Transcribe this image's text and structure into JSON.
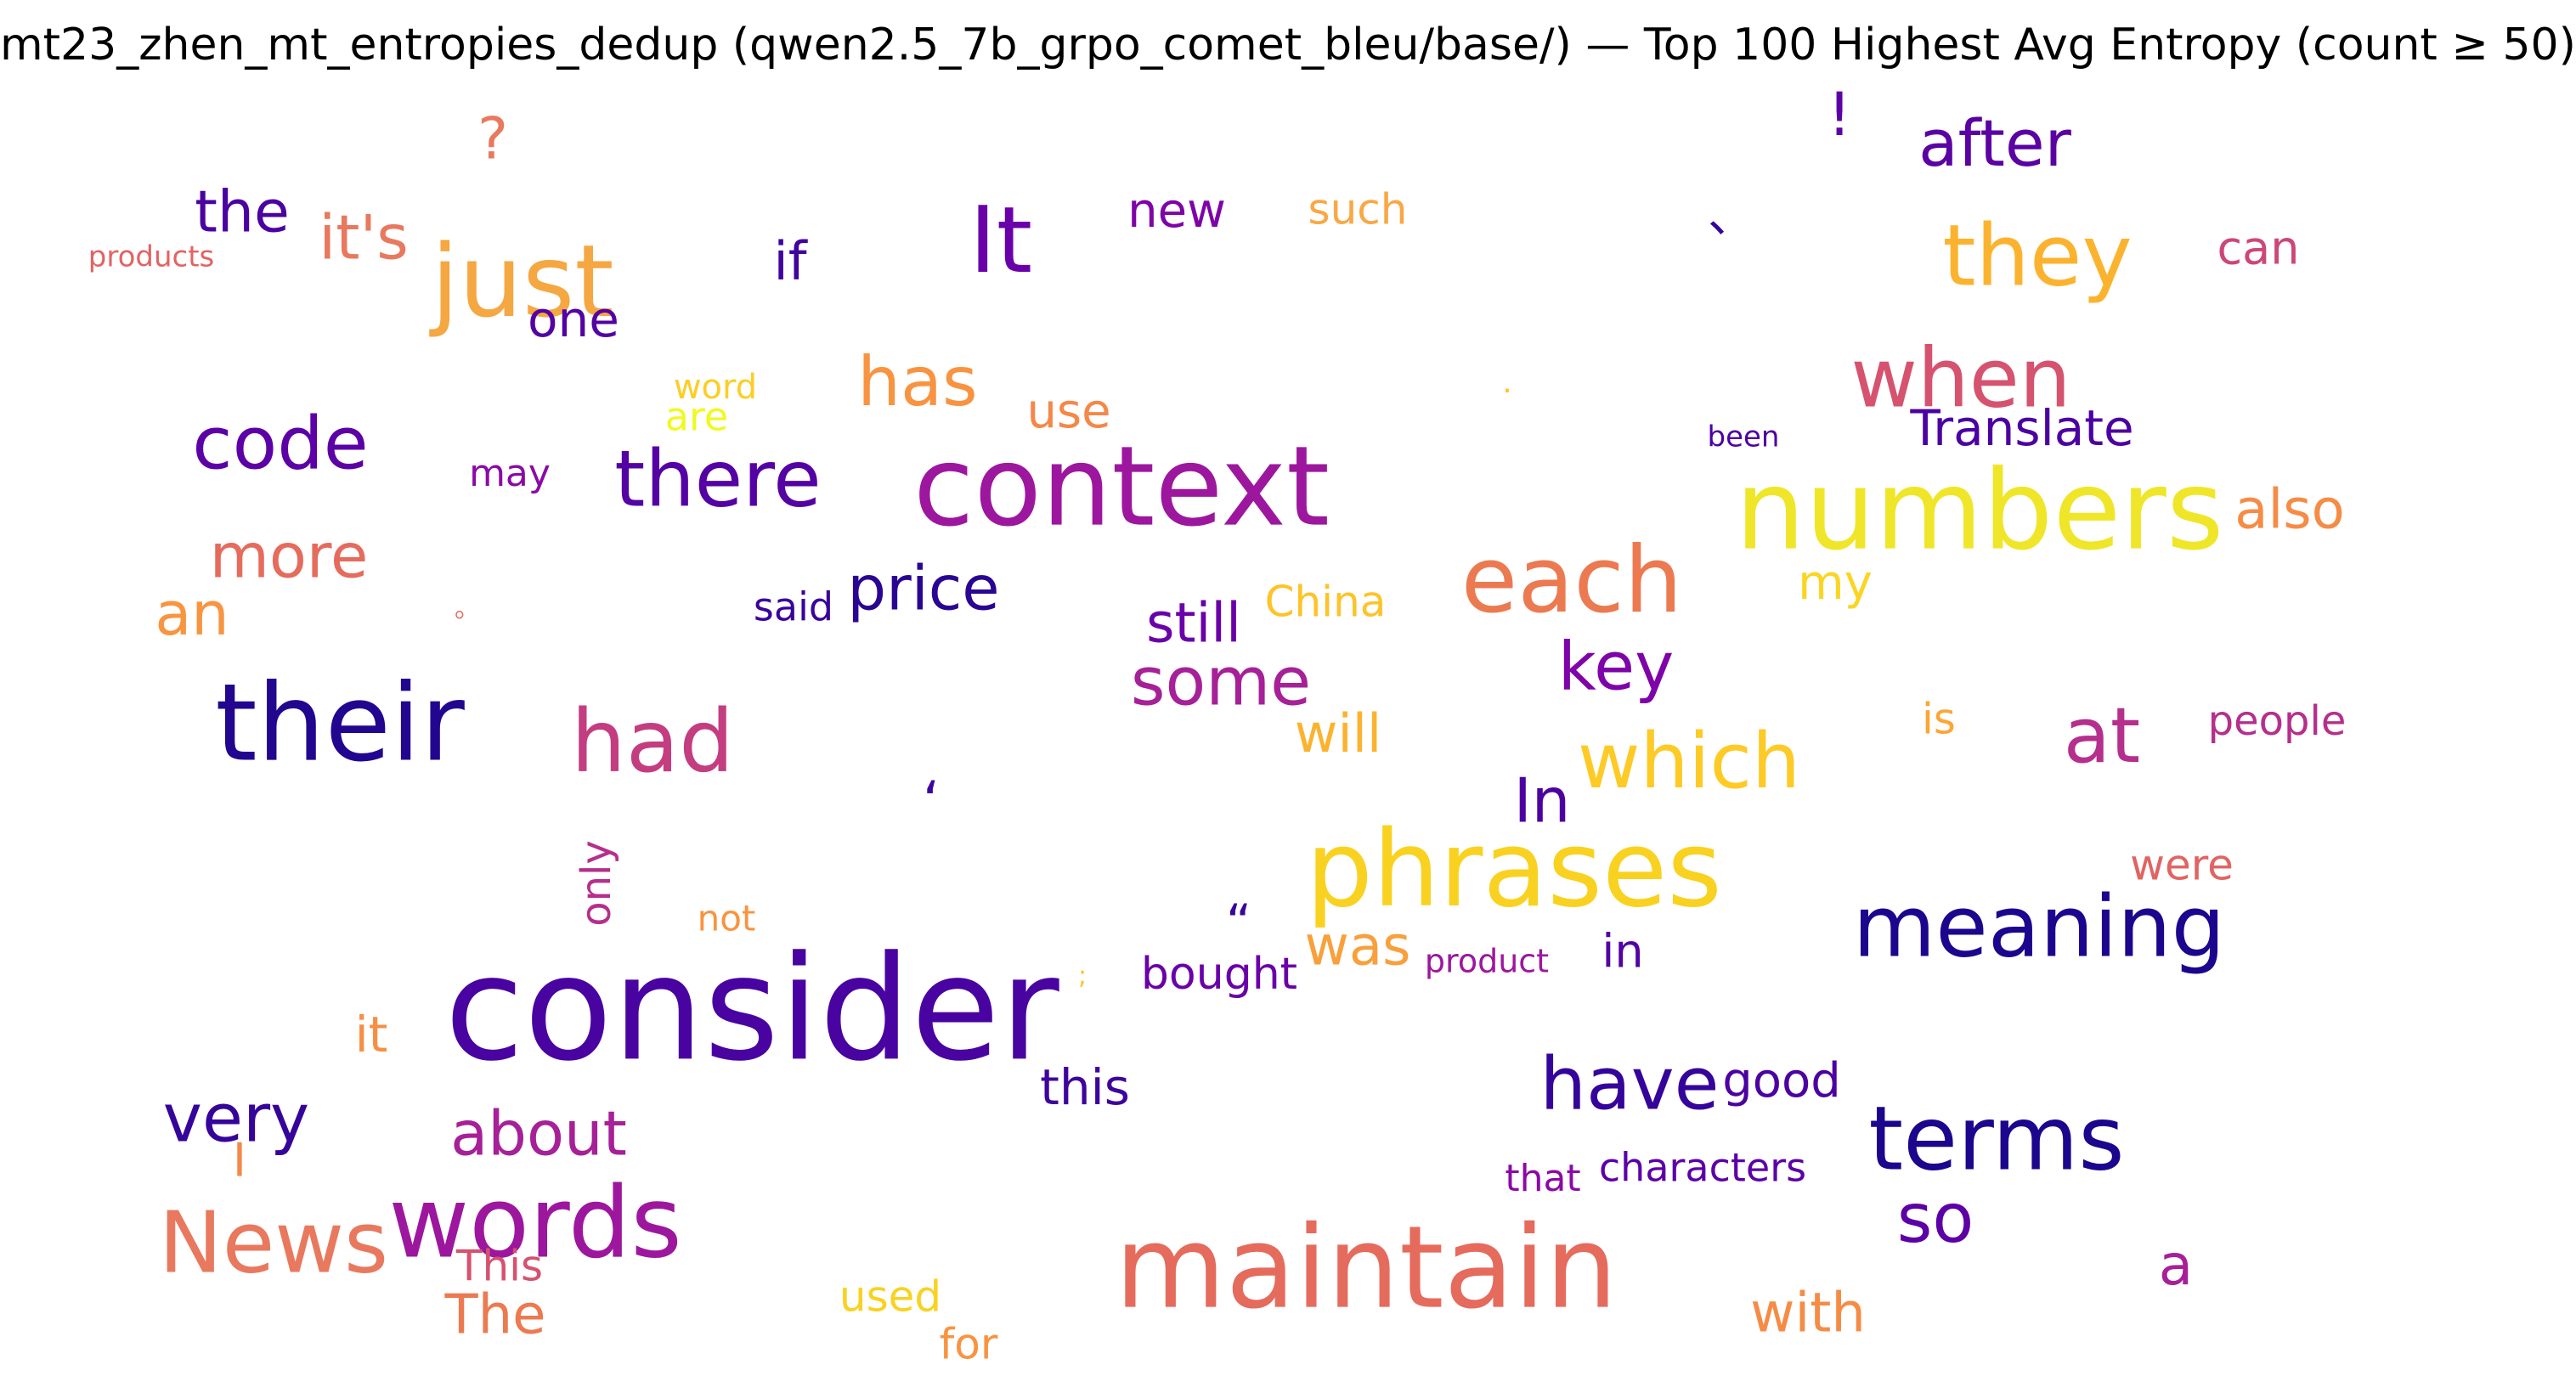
{
  "title": "mt23_zhen_mt_entropies_dedup (qwen2.5_7b_grpo_comet_bleu/base/) — Top 100 Highest Avg Entropy (count ≥ 50)",
  "words": [
    {
      "text": "?",
      "color": "#e8795e",
      "angle": 0
    },
    {
      "text": "!",
      "color": "#5c01a6",
      "angle": 0
    },
    {
      "text": "after",
      "color": "#5b02a3",
      "angle": 0
    },
    {
      "text": "the",
      "color": "#4a02a0",
      "angle": 0
    },
    {
      "text": "it's",
      "color": "#e8795e",
      "angle": 0
    },
    {
      "text": "just",
      "color": "#f5a742",
      "angle": 0
    },
    {
      "text": "It",
      "color": "#6a00a8",
      "angle": 0
    },
    {
      "text": "new",
      "color": "#7e03a8",
      "angle": 0
    },
    {
      "text": "such",
      "color": "#f9a845",
      "angle": 0
    },
    {
      "text": "、",
      "color": "#35049a",
      "angle": 0
    },
    {
      "text": "they",
      "color": "#fbb32f",
      "angle": 0
    },
    {
      "text": "can",
      "color": "#cc4778",
      "angle": 0
    },
    {
      "text": "products",
      "color": "#e16462",
      "angle": 0
    },
    {
      "text": "if",
      "color": "#41049d",
      "angle": 0
    },
    {
      "text": "one",
      "color": "#5302a3",
      "angle": 0
    },
    {
      "text": "has",
      "color": "#f89441",
      "angle": 0
    },
    {
      "text": "when",
      "color": "#d5536f",
      "angle": 0
    },
    {
      "text": "word",
      "color": "#fcce25",
      "angle": 0
    },
    {
      "text": "are",
      "color": "#f0f921",
      "angle": 0
    },
    {
      "text": "use",
      "color": "#f48849",
      "angle": 0
    },
    {
      "text": "Translate",
      "color": "#4c02a1",
      "angle": 0
    },
    {
      "text": "code",
      "color": "#5c01a6",
      "angle": 0
    },
    {
      "text": ".",
      "color": "#fdc328",
      "angle": 0
    },
    {
      "text": "been",
      "color": "#4c02a1",
      "angle": 0
    },
    {
      "text": "may",
      "color": "#8b0aa5",
      "angle": 0
    },
    {
      "text": "there",
      "color": "#5402a3",
      "angle": 0
    },
    {
      "text": "context",
      "color": "#9c179e",
      "angle": 0
    },
    {
      "text": "numbers",
      "color": "#f0e629",
      "angle": 0
    },
    {
      "text": "also",
      "color": "#f58c46",
      "angle": 0
    },
    {
      "text": "more",
      "color": "#e56b5d",
      "angle": 0
    },
    {
      "text": "each",
      "color": "#ec7a51",
      "angle": 0
    },
    {
      "text": "an",
      "color": "#f89540",
      "angle": 0
    },
    {
      "text": "price",
      "color": "#2a0593",
      "angle": 0
    },
    {
      "text": "said",
      "color": "#3a049a",
      "angle": 0
    },
    {
      "text": "。",
      "color": "#e56b5d",
      "angle": 0
    },
    {
      "text": "still",
      "color": "#6a00a8",
      "angle": 0
    },
    {
      "text": "China",
      "color": "#fdc328",
      "angle": 0
    },
    {
      "text": "my",
      "color": "#fbd524",
      "angle": 0
    },
    {
      "text": "their",
      "color": "#220690",
      "angle": 0
    },
    {
      "text": "some",
      "color": "#a62098",
      "angle": 0
    },
    {
      "text": "key",
      "color": "#7e03a8",
      "angle": 0
    },
    {
      "text": "had",
      "color": "#c33d80",
      "angle": 0
    },
    {
      "text": "will",
      "color": "#fbb32f",
      "angle": 0
    },
    {
      "text": "which",
      "color": "#fdca26",
      "angle": 0
    },
    {
      "text": "is",
      "color": "#fca636",
      "angle": 0
    },
    {
      "text": "at",
      "color": "#b52f8c",
      "angle": 0
    },
    {
      "text": "people",
      "color": "#b52f8c",
      "angle": 0
    },
    {
      "text": "‘",
      "color": "#3e049c",
      "angle": 0
    },
    {
      "text": "In",
      "color": "#4c02a1",
      "angle": 0
    },
    {
      "text": "phrases",
      "color": "#f9d221",
      "angle": 0
    },
    {
      "text": "only",
      "color": "#b52f8c",
      "angle": -90
    },
    {
      "text": "not",
      "color": "#f89441",
      "angle": 0
    },
    {
      "text": "“",
      "color": "#3a049a",
      "angle": 0
    },
    {
      "text": "was",
      "color": "#f7a03c",
      "angle": 0
    },
    {
      "text": "were",
      "color": "#e16462",
      "angle": 0
    },
    {
      "text": "meaning",
      "color": "#1b068d",
      "angle": 0
    },
    {
      "text": "consider",
      "color": "#4903a0",
      "angle": 0
    },
    {
      "text": "bought",
      "color": "#6a00a8",
      "angle": 0
    },
    {
      "text": "product",
      "color": "#9c179e",
      "angle": 0
    },
    {
      "text": "in",
      "color": "#5302a3",
      "angle": 0
    },
    {
      "text": ";",
      "color": "#fdc328",
      "angle": 0
    },
    {
      "text": "it",
      "color": "#f68f44",
      "angle": 0
    },
    {
      "text": "this",
      "color": "#3e049c",
      "angle": 0
    },
    {
      "text": "have",
      "color": "#35049a",
      "angle": 0
    },
    {
      "text": "good",
      "color": "#4c02a1",
      "angle": 0
    },
    {
      "text": "very",
      "color": "#35049a",
      "angle": 0
    },
    {
      "text": "about",
      "color": "#a62098",
      "angle": 0
    },
    {
      "text": "terms",
      "color": "#1b068d",
      "angle": 0
    },
    {
      "text": "I",
      "color": "#f48849",
      "angle": 0
    },
    {
      "text": "that",
      "color": "#8b0aa5",
      "angle": 0
    },
    {
      "text": "characters",
      "color": "#5c01a6",
      "angle": 0
    },
    {
      "text": "so",
      "color": "#5c01a6",
      "angle": 0
    },
    {
      "text": "News",
      "color": "#e8795e",
      "angle": 0
    },
    {
      "text": "words",
      "color": "#9c179e",
      "angle": 0
    },
    {
      "text": "maintain",
      "color": "#e56b5d",
      "angle": 0
    },
    {
      "text": "a",
      "color": "#a62098",
      "angle": 0
    },
    {
      "text": "This",
      "color": "#d5536f",
      "angle": 0
    },
    {
      "text": "The",
      "color": "#ec7a51",
      "angle": 0
    },
    {
      "text": "used",
      "color": "#f9d221",
      "angle": 0
    },
    {
      "text": "with",
      "color": "#f58c46",
      "angle": 0
    },
    {
      "text": "for",
      "color": "#f89441",
      "angle": 0
    }
  ]
}
